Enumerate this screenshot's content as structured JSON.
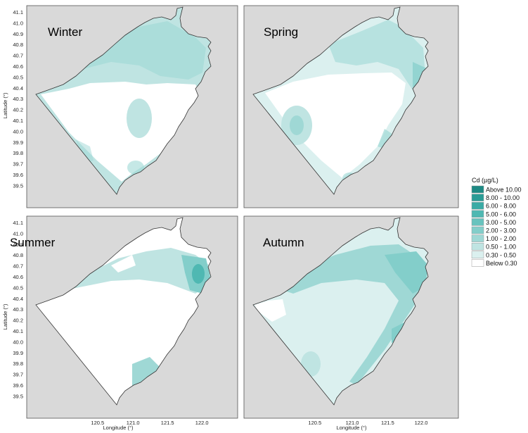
{
  "panels": [
    {
      "id": "winter",
      "label": "Winter"
    },
    {
      "id": "spring",
      "label": "Spring"
    },
    {
      "id": "summer",
      "label": "Summer"
    },
    {
      "id": "autumn",
      "label": "Autumn"
    }
  ],
  "axes": {
    "ylabel": "Latitude (°)",
    "xlabel": "Longitude (°)",
    "lat_ticks": [
      "41.1",
      "41.0",
      "40.9",
      "40.8",
      "40.7",
      "40.6",
      "40.5",
      "40.4",
      "40.3",
      "40.2",
      "40.1",
      "40.0",
      "39.9",
      "39.8",
      "39.7",
      "39.6",
      "39.5"
    ],
    "lon_ticks": [
      "120.5",
      "121.0",
      "121.5",
      "122.0"
    ]
  },
  "legend": {
    "title": "Cd (µg/L)",
    "entries": [
      {
        "label": "Above 10.00",
        "color": "#1e8a84"
      },
      {
        "label": "8.00 - 10.00",
        "color": "#2a9c96"
      },
      {
        "label": "6.00 -  8.00",
        "color": "#3aaba5"
      },
      {
        "label": "5.00 -  6.00",
        "color": "#4fb8b2"
      },
      {
        "label": "3.00 -  5.00",
        "color": "#68c3be"
      },
      {
        "label": "2.00 -  3.00",
        "color": "#83ceca"
      },
      {
        "label": "1.00 -  2.00",
        "color": "#9fd8d5"
      },
      {
        "label": "0.50 -  1.00",
        "color": "#bfe4e2"
      },
      {
        "label": "0.30 -  0.50",
        "color": "#dbf0ef"
      },
      {
        "label": "Below  0.30",
        "color": "#ffffff"
      }
    ]
  }
}
